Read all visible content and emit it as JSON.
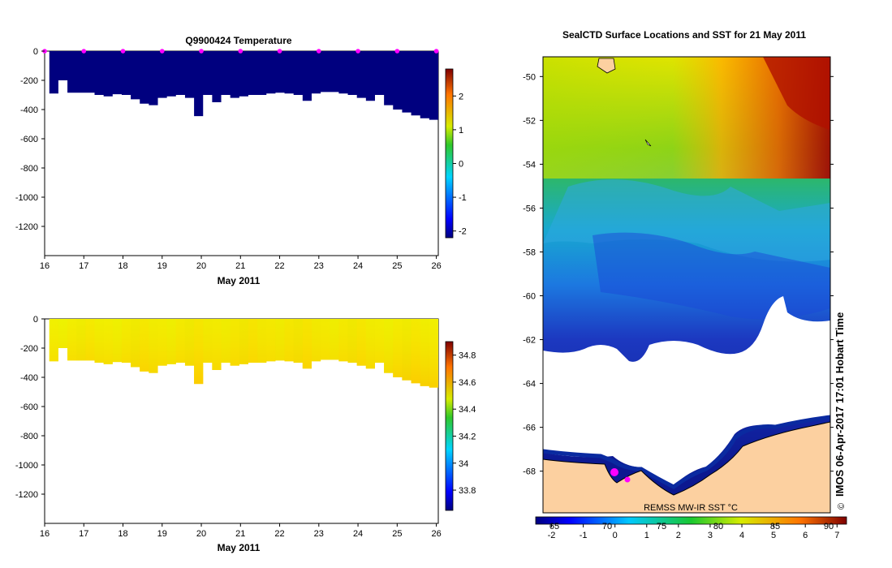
{
  "chart_data": [
    {
      "type": "heatmap",
      "title": "Q9900424  Temperature",
      "xlabel": "May 2011",
      "x_ticks": [
        "16",
        "17",
        "18",
        "19",
        "20",
        "21",
        "22",
        "23",
        "24",
        "25",
        "26"
      ],
      "xlim": [
        16,
        26.05
      ],
      "ylim": [
        0,
        -1400
      ],
      "y_ticks": [
        "0",
        "-200",
        "-400",
        "-600",
        "-800",
        "-1000",
        "-1200"
      ],
      "colorbar_ticks": [
        "2",
        "1",
        "0",
        "-1",
        "-2"
      ],
      "colorbar_range": [
        -2.2,
        2.8
      ],
      "dominant_value": -1.9,
      "profile_markers": [
        16,
        17,
        18,
        19,
        20,
        21,
        22,
        23,
        24,
        25,
        26
      ]
    },
    {
      "type": "heatmap",
      "title": "",
      "xlabel": "May 2011",
      "x_ticks": [
        "16",
        "17",
        "18",
        "19",
        "20",
        "21",
        "22",
        "23",
        "24",
        "25",
        "26"
      ],
      "xlim": [
        16,
        26.05
      ],
      "ylim": [
        0,
        -1400
      ],
      "y_ticks": [
        "0",
        "-200",
        "-400",
        "-600",
        "-800",
        "-1000",
        "-1200"
      ],
      "colorbar_ticks": [
        "34.8",
        "34.6",
        "34.4",
        "34.2",
        "34",
        "33.8"
      ],
      "colorbar_range": [
        33.65,
        34.9
      ],
      "dominant_value": 34.35
    },
    {
      "type": "heatmap",
      "title": "SealCTD Surface Locations and SST for 21 May 2011",
      "y_ticks": [
        "-50",
        "-52",
        "-54",
        "-56",
        "-58",
        "-60",
        "-62",
        "-64",
        "-66",
        "-68"
      ],
      "ylim": [
        -49.1,
        -69.9
      ],
      "colorbar_label": "REMSS MW-IR SST °C",
      "colorbar_ticks": [
        "-2",
        "-1",
        "0",
        "1",
        "2",
        "3",
        "4",
        "5",
        "6",
        "7"
      ],
      "lon_ticks": [
        "65",
        "70",
        "75",
        "80",
        "85",
        "90"
      ],
      "colorbar_range": [
        -2.5,
        7.3
      ]
    }
  ],
  "profile_depths": [
    -290,
    -200,
    -285,
    -285,
    -285,
    -300,
    -310,
    -295,
    -300,
    -330,
    -360,
    -370,
    -320,
    -310,
    -300,
    -320,
    -445,
    -300,
    -350,
    -300,
    -320,
    -310,
    -300,
    -300,
    -290,
    -285,
    -290,
    -300,
    -340,
    -290,
    -280,
    -280,
    -290,
    -300,
    -320,
    -340,
    -300,
    -370,
    -400,
    -420,
    -440,
    -460,
    -470
  ],
  "credit": "IMOS 06-Apr-2017 17:01 Hobart Time",
  "copyright": "©"
}
